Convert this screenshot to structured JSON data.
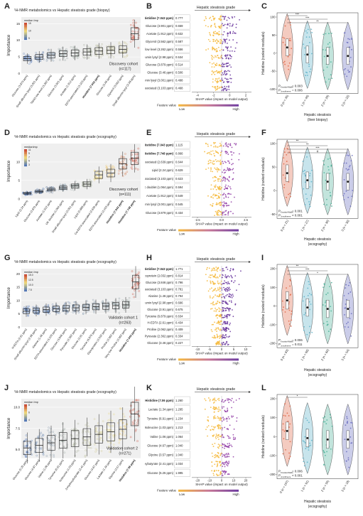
{
  "rows": [
    {
      "a": {
        "letter": "A",
        "title": "¹H-NMR metabolomics vs Hepatic steatosis grade (biopsy)",
        "ylabel": "Importance",
        "legend_title": "median Imp",
        "legend_ticks": [
          "15",
          "10",
          "5"
        ],
        "cohort": "Discovery cohort",
        "n": "(n=117)",
        "yticks": [
          "15",
          "10",
          "5",
          "0"
        ],
        "chart_data": {
          "type": "box",
          "categories": [
            "Glucose (3.879 ppm)",
            "Small albumin lysyl (3.001 ppm)",
            "TMAO low level (3.262 ppm)",
            "Glucose (3.901 ppm)",
            "Acetate (1.912 ppm)",
            "EDTA-associated (3.103 ppm)",
            "Histidine (7.043 ppm)",
            "Glucose (3.46 ppm)",
            "Glycerol (3.562 ppm)",
            "Small albumin lysyl (2.98 ppm)"
          ],
          "values": [
            4.5,
            5,
            5.5,
            6,
            6.2,
            6.5,
            6.8,
            7,
            7.3,
            12
          ],
          "ylim": [
            0,
            17
          ]
        }
      },
      "b": {
        "letter": "B",
        "title": "Hepatic steatosis grade",
        "xlabel": "SHAP value (impact on model output)",
        "features": [
          "Histidine (7.043 ppm)",
          "Glucose (3.901 ppm)",
          "Acetate (1.912 ppm)",
          "Glycerol (3.562 ppm)",
          "TMAO low level (3.262 ppm)",
          "Small albumin lysyl (2.98 ppm)",
          "Glucose (3.879 ppm)",
          "Glucose (3.46 ppm)",
          "Small albumin lysyl (3.001 ppm)",
          "EDTA-associated (3.103 ppm)"
        ],
        "vals": [
          "0.777",
          "0.659",
          "0.632",
          "0.587",
          "0.556",
          "0.534",
          "0.514",
          "0.506",
          "0.498",
          "0.468"
        ],
        "xticks": [
          "-4",
          "-2",
          "0",
          "2"
        ],
        "fv": "Feature value",
        "low": "Low",
        "high": "High"
      },
      "c": {
        "letter": "C",
        "ylabel": "Histidine (ranked residuals)",
        "xlabel1": "Hepatic steatosis",
        "xlabel2": "(liver biopsy)",
        "p1": "P",
        "p1sub": "Kruskal-Wallis",
        "p1val": "= 0.003",
        "p2": "P",
        "p2sub": "Jonckheere",
        "p2val": "= 0.006",
        "groups": [
          "0 (n = 35)",
          "1 (n = 40)",
          "2 (n = 20)",
          "3 (n = 22)"
        ],
        "yticks": [
          "100",
          "50",
          "0",
          "-50",
          "-100"
        ],
        "sig": [
          "***",
          "***",
          "**"
        ]
      }
    },
    {
      "a": {
        "letter": "D",
        "title": "¹H-NMR metabolomics vs Hepatic steatosis grade (ecography)",
        "ylabel": "Importance",
        "legend_title": "medianImp",
        "legend_ticks": [
          "11",
          "9",
          "7",
          "5",
          "3"
        ],
        "cohort": "Discovery cohort",
        "n": "(n=111)",
        "yticks": [
          "10",
          "5",
          "0"
        ],
        "chart_data": {
          "type": "box",
          "categories": [
            "Lipid (2.24 ppm)",
            "Glucose (3.879 ppm)",
            "Acetate (1.912 ppm)",
            "UK doublet (1.064 ppm)",
            "Small albumin lysyl (3.001 ppm)",
            "Lipid (0.888 ppm)",
            "Ca-EDTA-associated (2.639 ppm)",
            "EDTA-associated (3.103 ppm)",
            "Histidine (7.043 ppm)",
            "Histidine (7.748 ppm)"
          ],
          "values": [
            1.5,
            2,
            2.5,
            3,
            3.5,
            4,
            6.5,
            7,
            9.5,
            11
          ],
          "ylim": [
            0,
            15
          ]
        }
      },
      "b": {
        "letter": "E",
        "title": "Hepatic steatosis grade",
        "xlabel": "SHAP value (impact on model output)",
        "features": [
          "Histidine (7.043 ppm)",
          "Histidine (7.748 ppm)",
          "Ca-EDTA-associated (2.639 ppm)",
          "Lipid (2.24 ppm)",
          "EDTA-associated (3.103 ppm)",
          "UK doublet (1.064 ppm)",
          "Acetate (1.912 ppm)",
          "Small albumin lysyl (3.001 ppm)",
          "Glucose (3.879 ppm)"
        ],
        "vals": [
          "1.115",
          "0.866",
          "0.644",
          "0.629",
          "0.623",
          "0.594",
          "0.549",
          "0.545",
          "0.434"
        ],
        "xticks": [
          "-2.5",
          "0.0",
          "2.5"
        ],
        "fv": "Feature value",
        "low": "Low",
        "high": "High"
      },
      "c": {
        "letter": "F",
        "ylabel": "Histidine (ranked residuals)",
        "xlabel1": "Hepatic steatosis",
        "xlabel2": "(ecography)",
        "p1": "P",
        "p1sub": "Kruskal-Wallis",
        "p1val": "= 0.001",
        "p2": "P",
        "p2sub": "Jonckheere",
        "p2val": "< 0.001",
        "groups": [
          "0 (n = 21)",
          "1 (n = 27)",
          "2 (n = 30)",
          "3 (n = 30)"
        ],
        "yticks": [
          "100",
          "50",
          "0",
          "-50"
        ],
        "sig": [
          "**",
          "**",
          "***",
          "#"
        ]
      }
    },
    {
      "a": {
        "letter": "G",
        "title": "¹H-NMR metabolomics vs Hepatic steatosis grade (ecography)",
        "ylabel": "Importance",
        "legend_title": "median Imp",
        "legend_ticks": [
          "15.0",
          "12.5",
          "10.0",
          "7.5"
        ],
        "cohort": "Validatin cohort 1",
        "n": "(n=263)",
        "yticks": [
          "20",
          "15",
          "10",
          "5",
          "0"
        ],
        "chart_data": {
          "type": "box",
          "categories": [
            "H-EDTA (2.61 ppm)",
            "Small albumin lysyl (2.98 ppm)",
            "Alanine (1.46 ppm)",
            "EDTA-associated (3.103 ppm)",
            "Glucose (3.846 ppm)",
            "Pyruvate (2.362 ppm)",
            "Glucose (3.91 ppm)",
            "Tyrosine (6.879 ppm)",
            "Glycoprotein (2.032 ppm)",
            "Proline (2.062 ppm)",
            "Very low Proline (2.062 ppm)",
            "Histidine (7.043 ppm)"
          ],
          "values": [
            6,
            6.3,
            6.6,
            6.9,
            7.1,
            7.3,
            7.5,
            7.7,
            7.9,
            8.1,
            8.4,
            17
          ],
          "ylim": [
            0,
            22
          ]
        }
      },
      "b": {
        "letter": "H",
        "title": "Hepatic steatosis grade",
        "xlabel": "SHAP value (impact on model output)",
        "features": [
          "Histidine (7.043 ppm)",
          "Glycoprotein (2.032 ppm)",
          "Glucose (3.846 ppm)",
          "EDTA-associated (3.103 ppm)",
          "Alanine (1.46 ppm)",
          "Small albumin lysyl (2.98 ppm)",
          "Glucose (3.91 ppm)",
          "Tyrosine (6.879 ppm)",
          "H-EDTA (2.61 ppm)",
          "Proline (2.062 ppm)",
          "Pyruvate (2.362 ppm)",
          "Glucose (3.46 ppm)"
        ],
        "vals": [
          "1.771",
          "0.814",
          "0.796",
          "0.781",
          "0.794",
          "0.696",
          "0.675",
          "0.634",
          "0.434",
          "0.409",
          "0.334",
          "0.227"
        ],
        "xticks": [
          "-10",
          "-5",
          "0",
          "5",
          "10"
        ],
        "fv": "Feature value",
        "low": "Low",
        "high": "High"
      },
      "c": {
        "letter": "I",
        "ylabel": "Histidine (ranked residuals)",
        "xlabel1": "Hepatic steatosis",
        "xlabel2": "(ecography)",
        "p1": "P",
        "p1sub": "Kruskal-Wallis",
        "p1val": "= 0.006",
        "p2": "P",
        "p2sub": "Jonckheere",
        "p2val": "= 0.011",
        "groups": [
          "0 (n = 83)",
          "1 (n = 66)",
          "2 (n = 60)",
          "3 (n = 54)"
        ],
        "yticks": [
          "200",
          "100",
          "0",
          "-100",
          "-200"
        ],
        "sig": [
          "**",
          "***",
          "*"
        ]
      }
    },
    {
      "a": {
        "letter": "J",
        "title": "¹H-NMR metabolomics vs Hepatic steatosis grade (ecography)",
        "ylabel": "Importance",
        "legend_title": "median Imp",
        "legend_ticks": [
          "8",
          "6",
          "4"
        ],
        "cohort": "Validation cohort 2",
        "n": "(n=271)",
        "yticks": [
          "10.0",
          "7.5",
          "5.0"
        ],
        "chart_data": {
          "type": "box",
          "categories": [
            "Glucose (5.25 ppm)",
            "Glucose (4.87 ppm)",
            "Valine (1.06 ppm)",
            "Tyrosine (6.91 ppm)",
            "Isoleucine (1.03 ppm)",
            "3-Hydroxybutyrate (2.41 ppm)",
            "Glucose (4.67 ppm)",
            "Lactate (1.34 ppm)",
            "Glycine (3.57 ppm)",
            "Histidine (7.06 ppm)"
          ],
          "values": [
            5.2,
            5.5,
            5.8,
            6.1,
            6.3,
            6.5,
            6.8,
            7.1,
            7.4,
            9.2
          ],
          "ylim": [
            4,
            11
          ]
        }
      },
      "b": {
        "letter": "K",
        "title": "Hepatic steatosis grade",
        "xlabel": "SHAP value (impact on model output)",
        "features": [
          "Histidine (7.06 ppm)",
          "Lactate (1.34 ppm)",
          "Tyrosine (6.91 ppm)",
          "Isoleucine (1.03 ppm)",
          "Valine (1.06 ppm)",
          "Glucose (4.67 ppm)",
          "Glycine (3.57 ppm)",
          "3-Hyroxybutyrate (2.41 ppm)",
          "Glucose (5.25 ppm)"
        ],
        "vals": [
          "1.260",
          "1.295",
          "1.234",
          "1.213",
          "1.064",
          "1.040",
          "1.040",
          "1.034",
          "1.995"
        ],
        "xticks": [
          "-20",
          "-10",
          "0",
          "10",
          "20"
        ],
        "fv": "Feature value",
        "low": "Low",
        "high": "High"
      },
      "c": {
        "letter": "L",
        "ylabel": "Histidine (ranked residuals)",
        "xlabel1": "Hepatic steatosis",
        "xlabel2": "(ecography)",
        "p1": "P",
        "p1sub": "Kruskal-Wallis",
        "p1val": "= 0.006",
        "p2": "P",
        "p2sub": "Jonckheere",
        "p2val": "< 0.001",
        "groups": [
          "0 (n = 107)",
          "1 (n = 91)",
          "2 (n = 55)",
          "3 (n = 18)"
        ],
        "yticks": [
          "200",
          "100",
          "0",
          "-100",
          "-200"
        ],
        "sig": [
          "*"
        ]
      }
    }
  ]
}
